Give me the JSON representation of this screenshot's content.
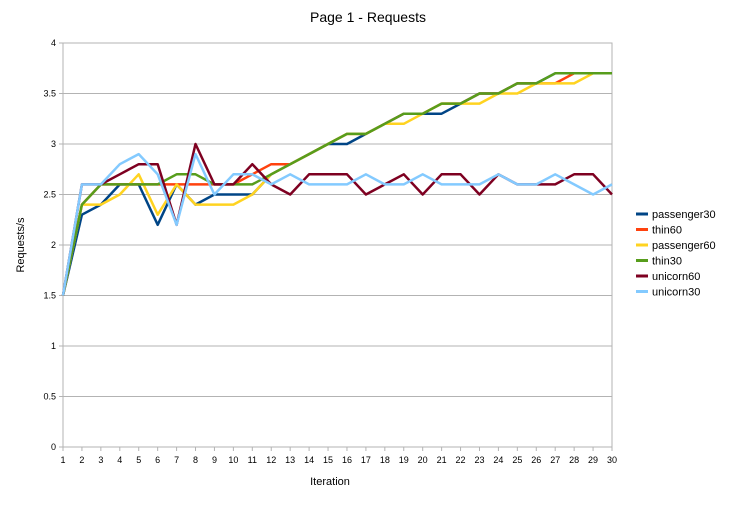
{
  "chart_data": {
    "type": "line",
    "title": "Page 1 - Requests",
    "xlabel": "Iteration",
    "ylabel": "Requests/s",
    "x": [
      1,
      2,
      3,
      4,
      5,
      6,
      7,
      8,
      9,
      10,
      11,
      12,
      13,
      14,
      15,
      16,
      17,
      18,
      19,
      20,
      21,
      22,
      23,
      24,
      25,
      26,
      27,
      28,
      29,
      30
    ],
    "ylim": [
      0,
      4
    ],
    "yticks": [
      "0",
      "0.5",
      "1",
      "1.5",
      "2",
      "2.5",
      "3",
      "3.5",
      "4"
    ],
    "grid": "horizontal",
    "legend_position": "right",
    "series": [
      {
        "name": "passenger30",
        "color": "#004586",
        "values": [
          1.5,
          2.3,
          2.4,
          2.6,
          2.6,
          2.2,
          2.6,
          2.4,
          2.5,
          2.5,
          2.5,
          2.7,
          2.8,
          2.9,
          3.0,
          3.0,
          3.1,
          3.2,
          3.3,
          3.3,
          3.3,
          3.4,
          3.5,
          3.5,
          3.6,
          3.6,
          3.7,
          3.7,
          3.7,
          3.7
        ]
      },
      {
        "name": "thin60",
        "color": "#ff420e",
        "values": [
          1.5,
          2.4,
          2.6,
          2.6,
          2.6,
          2.6,
          2.6,
          2.6,
          2.6,
          2.6,
          2.7,
          2.8,
          2.8,
          2.9,
          3.0,
          3.1,
          3.1,
          3.2,
          3.3,
          3.3,
          3.4,
          3.4,
          3.5,
          3.5,
          3.6,
          3.6,
          3.6,
          3.7,
          3.7,
          3.7
        ]
      },
      {
        "name": "passenger60",
        "color": "#ffd320",
        "values": [
          1.5,
          2.4,
          2.4,
          2.5,
          2.7,
          2.3,
          2.6,
          2.4,
          2.4,
          2.4,
          2.5,
          2.7,
          2.8,
          2.9,
          3.0,
          3.1,
          3.1,
          3.2,
          3.2,
          3.3,
          3.4,
          3.4,
          3.4,
          3.5,
          3.5,
          3.6,
          3.6,
          3.6,
          3.7,
          3.7
        ]
      },
      {
        "name": "thin30",
        "color": "#579d1c",
        "values": [
          1.5,
          2.4,
          2.6,
          2.6,
          2.6,
          2.6,
          2.7,
          2.7,
          2.6,
          2.6,
          2.6,
          2.7,
          2.8,
          2.9,
          3.0,
          3.1,
          3.1,
          3.2,
          3.3,
          3.3,
          3.4,
          3.4,
          3.5,
          3.5,
          3.6,
          3.6,
          3.7,
          3.7,
          3.7,
          3.7
        ]
      },
      {
        "name": "unicorn60",
        "color": "#7e0021",
        "values": [
          1.5,
          2.6,
          2.6,
          2.7,
          2.8,
          2.8,
          2.2,
          3.0,
          2.6,
          2.6,
          2.8,
          2.6,
          2.5,
          2.7,
          2.7,
          2.7,
          2.5,
          2.6,
          2.7,
          2.5,
          2.7,
          2.7,
          2.5,
          2.7,
          2.6,
          2.6,
          2.6,
          2.7,
          2.7,
          2.5
        ]
      },
      {
        "name": "unicorn30",
        "color": "#83caff",
        "values": [
          1.5,
          2.6,
          2.6,
          2.8,
          2.9,
          2.7,
          2.2,
          2.9,
          2.5,
          2.7,
          2.7,
          2.6,
          2.7,
          2.6,
          2.6,
          2.6,
          2.7,
          2.6,
          2.6,
          2.7,
          2.6,
          2.6,
          2.6,
          2.7,
          2.6,
          2.6,
          2.7,
          2.6,
          2.5,
          2.6
        ]
      }
    ]
  }
}
